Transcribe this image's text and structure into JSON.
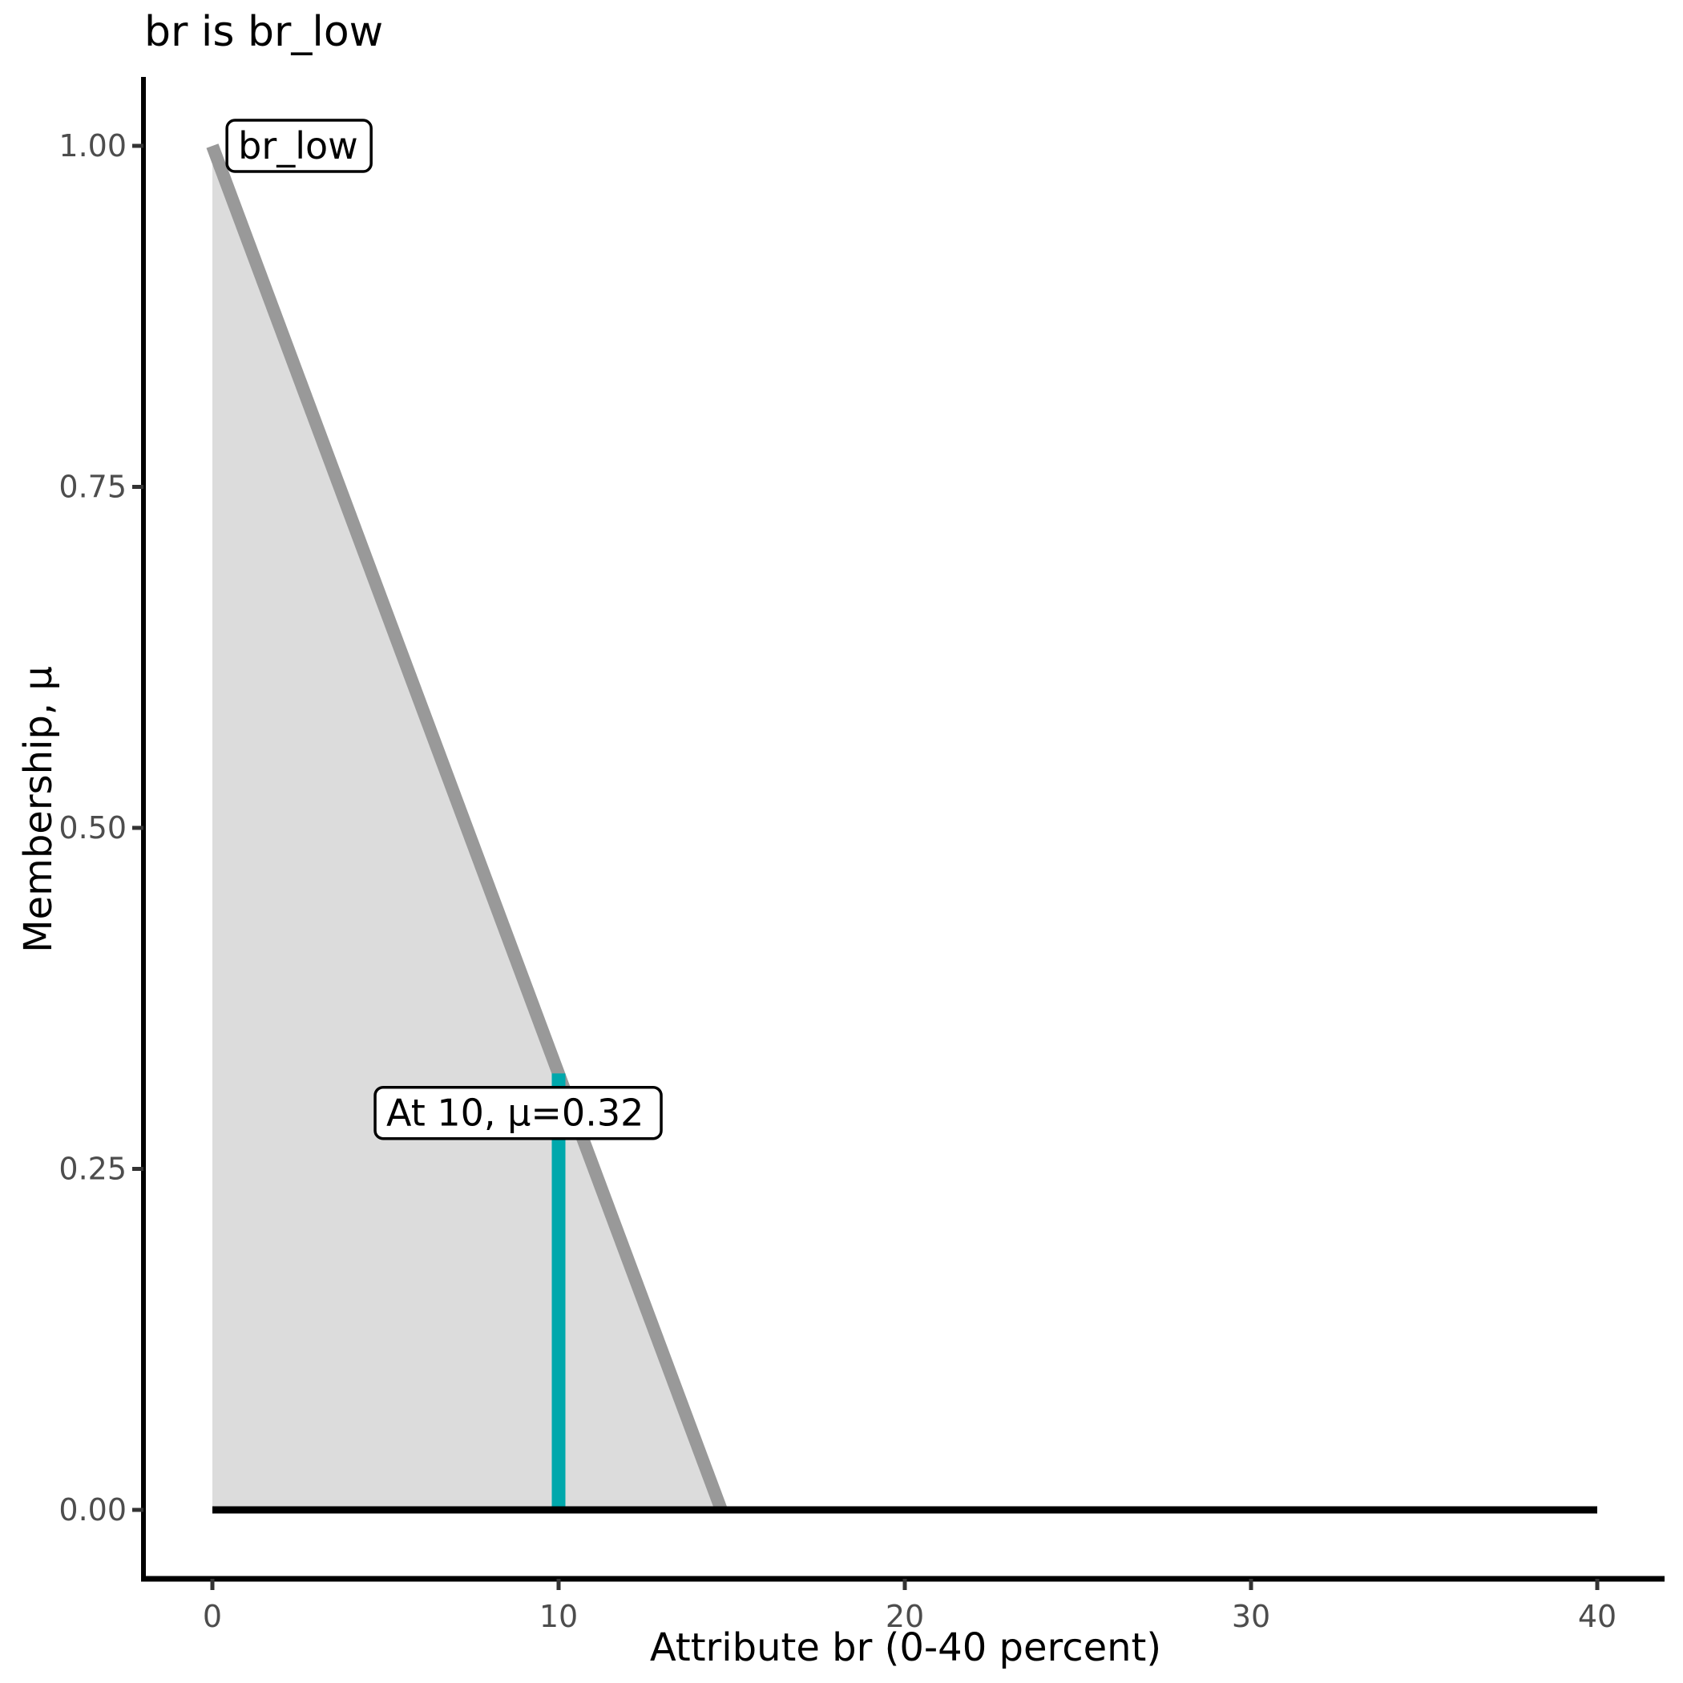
{
  "chart_data": {
    "type": "area",
    "title": "br is br_low",
    "xlabel": "Attribute br (0-40 percent)",
    "ylabel": "Membership, μ",
    "xlim": [
      0,
      40
    ],
    "ylim": [
      0,
      1
    ],
    "grid": false,
    "legend": "none",
    "x_ticks": [
      {
        "v": 0,
        "label": "0"
      },
      {
        "v": 10,
        "label": "10"
      },
      {
        "v": 20,
        "label": "20"
      },
      {
        "v": 30,
        "label": "30"
      },
      {
        "v": 40,
        "label": "40"
      }
    ],
    "y_ticks": [
      {
        "v": 0,
        "label": "0.00"
      },
      {
        "v": 0.25,
        "label": "0.25"
      },
      {
        "v": 0.5,
        "label": "0.50"
      },
      {
        "v": 0.75,
        "label": "0.75"
      },
      {
        "v": 1,
        "label": "1.00"
      }
    ],
    "series": [
      {
        "name": "br-low-area",
        "type": "area",
        "color": "#DCDCDC",
        "points": [
          [
            0,
            1
          ],
          [
            14.7,
            0
          ],
          [
            0,
            0
          ]
        ]
      },
      {
        "name": "br-low-membership-line",
        "type": "line",
        "color": "#999999",
        "stroke_width": 16,
        "points": [
          [
            0,
            1
          ],
          [
            14.7,
            0
          ]
        ]
      },
      {
        "name": "evaluation-vline",
        "type": "vline",
        "color": "#00A8AC",
        "stroke_width": 17,
        "x": 10,
        "y0": 0,
        "y1": 0.32
      },
      {
        "name": "zero-baseline",
        "type": "line",
        "color": "#000000",
        "stroke_width": 9,
        "points": [
          [
            0,
            0
          ],
          [
            40,
            0
          ]
        ]
      }
    ],
    "annotations": [
      {
        "name": "mf-name-label",
        "text": "br_low",
        "box_left_x": 0.42,
        "center_y": 1.0
      },
      {
        "name": "evaluation-label",
        "text": "At 10, μ=0.32",
        "box_left_x": 4.7,
        "center_y": 0.291
      }
    ],
    "evaluation": {
      "x": 10,
      "mu": 0.32
    }
  },
  "theme": {
    "background": "#FFFFFF",
    "spine_color": "#000000",
    "tick_color": "#333333",
    "tick_label_color": "#4D4D4D",
    "annotation_fill": "#FFFFFF",
    "annotation_border": "#000000"
  }
}
